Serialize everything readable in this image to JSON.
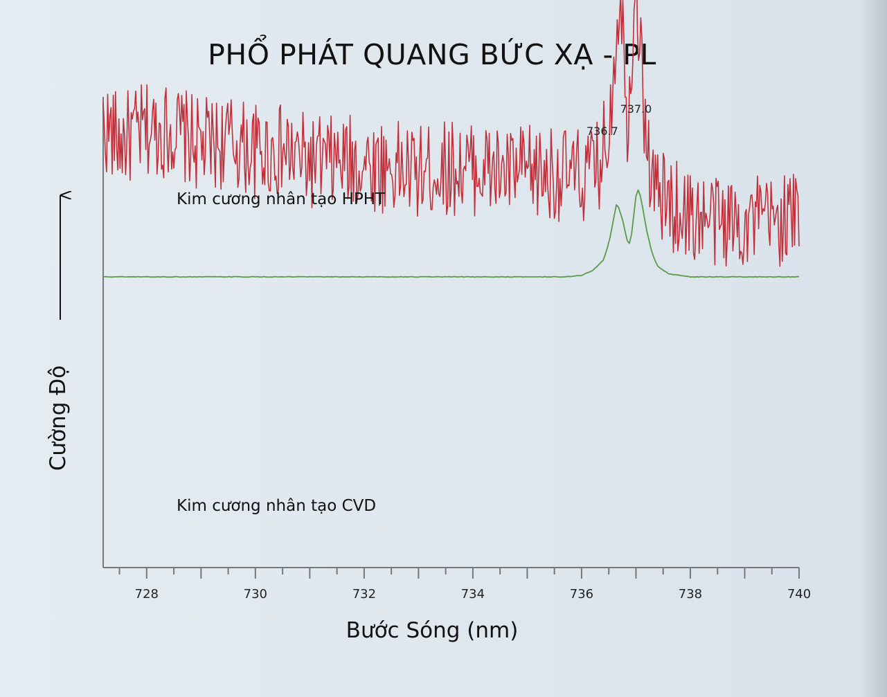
{
  "chart_data": {
    "type": "line",
    "title": "PHỔ PHÁT QUANG BỨC XẠ - PL",
    "xlabel": "Bước Sóng (nm)",
    "ylabel": "Cường Độ",
    "xlim": [
      727.2,
      740
    ],
    "ylim": [
      0,
      1
    ],
    "x_ticks": [
      728,
      730,
      732,
      734,
      736,
      738,
      740
    ],
    "x_tick_labels": [
      "728",
      "730",
      "732",
      "734",
      "736",
      "738",
      "740"
    ],
    "minor_tick_step": 0.5,
    "grid": false,
    "legend": "none",
    "annotations": [
      {
        "text": "736.7",
        "x": 736.7
      },
      {
        "text": "737.0",
        "x": 737.0
      }
    ],
    "series": [
      {
        "name": "Kim cương nhân tạo HPHT",
        "color": "#c0303a",
        "x": [
          727.2,
          727.5,
          728.0,
          728.5,
          729.0,
          729.5,
          730.0,
          730.5,
          731.0,
          731.5,
          732.0,
          732.5,
          733.0,
          733.5,
          734.0,
          734.5,
          735.0,
          735.5,
          736.0,
          736.3,
          736.5,
          736.6,
          736.7,
          736.8,
          736.85,
          736.9,
          737.0,
          737.1,
          737.2,
          737.3,
          737.5,
          738.0,
          738.5,
          739.0,
          739.5,
          740.0
        ],
        "y": [
          0.69,
          0.66,
          0.68,
          0.68,
          0.65,
          0.66,
          0.64,
          0.64,
          0.62,
          0.62,
          0.62,
          0.61,
          0.6,
          0.61,
          0.61,
          0.6,
          0.6,
          0.6,
          0.59,
          0.61,
          0.68,
          0.82,
          0.95,
          0.8,
          0.69,
          0.8,
          0.98,
          0.79,
          0.66,
          0.58,
          0.55,
          0.52,
          0.51,
          0.51,
          0.51,
          0.52
        ]
      },
      {
        "name": "Kim cương nhân tạo CVD",
        "color": "#5a9a48",
        "x": [
          727.2,
          728.0,
          729.0,
          730.0,
          731.0,
          732.0,
          733.0,
          734.0,
          735.0,
          735.7,
          736.0,
          736.2,
          736.4,
          736.5,
          736.65,
          736.75,
          736.85,
          736.9,
          737.0,
          737.05,
          737.1,
          737.2,
          737.3,
          737.4,
          737.6,
          738.0,
          739.0,
          740.0
        ],
        "y": [
          0.0,
          0.0,
          0.0,
          0.0,
          0.0,
          0.0,
          0.0,
          0.0,
          0.0,
          0.0,
          0.01,
          0.04,
          0.11,
          0.22,
          0.49,
          0.38,
          0.22,
          0.22,
          0.53,
          0.58,
          0.5,
          0.3,
          0.15,
          0.07,
          0.02,
          0.0,
          0.0,
          0.0
        ]
      }
    ]
  }
}
